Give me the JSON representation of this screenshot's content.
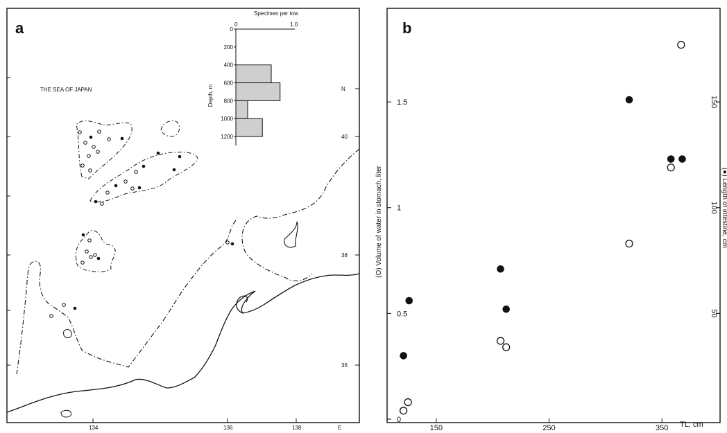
{
  "figure": {
    "panel_a": {
      "letter": "a",
      "sea_label": "THE SEA OF JAPAN",
      "lon_ticks": [
        "134",
        "136",
        "138"
      ],
      "lon_unit": "E",
      "lat_ticks": [
        "40",
        "38",
        "36"
      ],
      "lat_unit": "N",
      "inset": {
        "title": "Specimen per tow",
        "x_ticks": [
          "0",
          "1.0"
        ],
        "ylabel": "Depth, m",
        "y_ticks": [
          "0",
          "200",
          "400",
          "600",
          "800",
          "1000",
          "1200"
        ]
      }
    },
    "panel_b": {
      "letter": "b",
      "ylabel_left": "(O) Volume of water in stomach, liter",
      "ylabel_right": "(●) Length of intestine, cm",
      "xlabel": "TL, cm",
      "x_ticks": [
        "150",
        "250",
        "350"
      ],
      "y_left_ticks": [
        "0",
        "0.5",
        "1",
        "1.5"
      ],
      "y_right_ticks": [
        "50",
        "100",
        "150"
      ]
    }
  },
  "chart_data": [
    {
      "type": "bar",
      "title": "Specimen per tow",
      "orientation": "horizontal",
      "ylabel": "Depth, m",
      "categories": [
        "400-600",
        "600-800",
        "800-1000",
        "1000-1200"
      ],
      "values": [
        0.6,
        0.75,
        0.2,
        0.45
      ],
      "xlim": [
        0,
        1.0
      ],
      "ylim": [
        0,
        1300
      ],
      "bar_color": "#cfcfcf"
    },
    {
      "type": "scatter",
      "xlabel": "TL, cm",
      "xlim": [
        120,
        380
      ],
      "series": [
        {
          "name": "(O) Volume of water in stomach, liter",
          "marker": "open-circle",
          "axis": "left",
          "ylim": [
            0,
            1.9
          ],
          "points": [
            [
              121,
              0.04
            ],
            [
              125,
              0.08
            ],
            [
              207,
              0.37
            ],
            [
              212,
              0.34
            ],
            [
              321,
              0.83
            ],
            [
              358,
              1.19
            ],
            [
              367,
              1.77
            ]
          ]
        },
        {
          "name": "(●) Length of intestine, cm",
          "marker": "filled-circle",
          "axis": "right",
          "ylim": [
            0,
            190
          ],
          "points": [
            [
              121,
              30
            ],
            [
              126,
              56
            ],
            [
              207,
              71
            ],
            [
              212,
              52
            ],
            [
              321,
              151
            ],
            [
              358,
              123
            ],
            [
              368,
              123
            ]
          ]
        }
      ]
    }
  ]
}
